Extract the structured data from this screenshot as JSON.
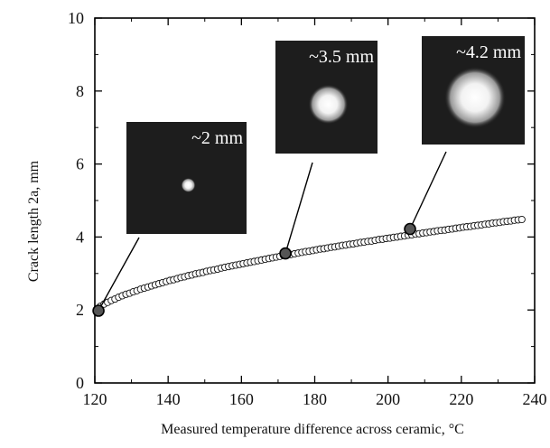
{
  "chart_data": {
    "type": "scatter",
    "title": "",
    "xlabel": "Measured temperature difference across ceramic, °C",
    "ylabel": "Crack length 2a, mm",
    "xlim": [
      120,
      240
    ],
    "ylim": [
      0,
      10
    ],
    "xticks": [
      120,
      140,
      160,
      180,
      200,
      220,
      240
    ],
    "yticks": [
      0,
      2,
      4,
      6,
      8,
      10
    ],
    "xtick_labels": [
      "120",
      "140",
      "160",
      "180",
      "200",
      "220",
      "240"
    ],
    "ytick_labels": [
      "0",
      "2",
      "4",
      "6",
      "8",
      "10"
    ],
    "grid": false,
    "legend": "none",
    "series": [
      {
        "marker": "open-circle",
        "x": [
          120.5,
          121.5,
          122.5,
          123.5,
          124.5,
          125.5,
          126.5,
          127.5,
          128.5,
          129.5,
          130.5,
          131.5,
          132.5,
          133.5,
          134.5,
          135.5,
          136.5,
          137.5,
          138.5,
          139.5,
          140.5,
          141.5,
          142.5,
          143.5,
          144.5,
          145.5,
          146.5,
          147.5,
          148.5,
          149.5,
          150.5,
          151.5,
          152.5,
          153.5,
          154.5,
          155.5,
          156.5,
          157.5,
          158.5,
          159.5,
          160.5,
          161.5,
          162.5,
          163.5,
          164.5,
          165.5,
          166.5,
          167.5,
          168.5,
          169.5,
          170.5,
          171.5,
          172.5,
          173.5,
          174.5,
          175.5,
          176.5,
          177.5,
          178.5,
          179.5,
          180.5,
          181.5,
          182.5,
          183.5,
          184.5,
          185.5,
          186.5,
          187.5,
          188.5,
          189.5,
          190.5,
          191.5,
          192.5,
          193.5,
          194.5,
          195.5,
          196.5,
          197.5,
          198.5,
          199.5,
          200.5,
          201.5,
          202.5,
          203.5,
          204.5,
          205.5,
          206.5,
          207.5,
          208.5,
          209.5,
          210.5,
          211.5,
          212.5,
          213.5,
          214.5,
          215.5,
          216.5,
          217.5,
          218.5,
          219.5,
          220.5,
          221.5,
          222.5,
          223.5,
          224.5,
          225.5,
          226.5,
          227.5,
          228.5,
          229.5,
          230.5,
          231.5,
          232.5,
          233.5,
          234.5,
          235.5,
          236.5
        ],
        "y": [
          2.0,
          2.1,
          2.16,
          2.21,
          2.26,
          2.3,
          2.35,
          2.39,
          2.43,
          2.46,
          2.5,
          2.53,
          2.57,
          2.6,
          2.63,
          2.66,
          2.69,
          2.72,
          2.75,
          2.78,
          2.81,
          2.83,
          2.86,
          2.89,
          2.91,
          2.94,
          2.96,
          2.99,
          3.01,
          3.03,
          3.06,
          3.08,
          3.1,
          3.12,
          3.15,
          3.17,
          3.19,
          3.21,
          3.23,
          3.25,
          3.27,
          3.29,
          3.31,
          3.33,
          3.35,
          3.37,
          3.39,
          3.41,
          3.43,
          3.45,
          3.47,
          3.49,
          3.51,
          3.52,
          3.54,
          3.56,
          3.58,
          3.6,
          3.61,
          3.63,
          3.65,
          3.67,
          3.68,
          3.7,
          3.72,
          3.73,
          3.75,
          3.77,
          3.78,
          3.8,
          3.81,
          3.83,
          3.85,
          3.86,
          3.88,
          3.89,
          3.91,
          3.93,
          3.94,
          3.96,
          3.97,
          3.99,
          4.0,
          4.02,
          4.03,
          4.05,
          4.06,
          4.08,
          4.09,
          4.11,
          4.12,
          4.14,
          4.15,
          4.17,
          4.18,
          4.19,
          4.21,
          4.22,
          4.24,
          4.25,
          4.27,
          4.28,
          4.29,
          4.31,
          4.32,
          4.33,
          4.35,
          4.36,
          4.38,
          4.39,
          4.4,
          4.42,
          4.43,
          4.44,
          4.46,
          4.47,
          4.48
        ]
      }
    ],
    "highlighted_points": [
      {
        "x": 121,
        "y": 1.98
      },
      {
        "x": 172,
        "y": 3.55
      },
      {
        "x": 206,
        "y": 4.22
      }
    ],
    "annotations": [
      {
        "label": "~2 mm",
        "points_to": {
          "x": 121,
          "y": 1.98
        },
        "spot_size": "small"
      },
      {
        "label": "~3.5 mm",
        "points_to": {
          "x": 172,
          "y": 3.55
        },
        "spot_size": "medium"
      },
      {
        "label": "~4.2 mm",
        "points_to": {
          "x": 206,
          "y": 4.22
        },
        "spot_size": "large"
      }
    ]
  }
}
